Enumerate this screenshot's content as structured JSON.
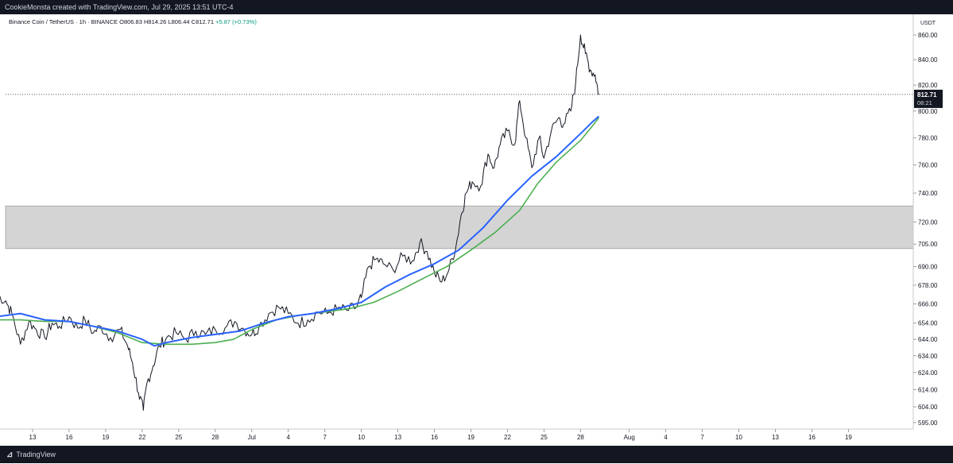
{
  "header": {
    "caption": "CookieMonsta created with TradingView.com, Jul 29, 2025 13:51 UTC-4"
  },
  "legend": {
    "symbol": "Binance Coin / TetherUS · 1h · BINANCE",
    "open": "O806.83",
    "high": "H814.26",
    "low": "L806.44",
    "close": "C812.71",
    "change": "+5.87 (+0.73%)"
  },
  "price_label": {
    "price": "812.71",
    "countdown": "08:21"
  },
  "footer": {
    "brand": "TradingView"
  },
  "colors": {
    "price": "#131722",
    "ma_fast": "#2962ff",
    "ma_slow": "#4caf50",
    "zone": "#d4d4d4",
    "panel": "#131722"
  },
  "chart_data": {
    "type": "line",
    "title": "",
    "ylabel": "USDT",
    "y_scale": "log",
    "ylim": [
      590,
      870
    ],
    "y_ticks": [
      595,
      604,
      614,
      624,
      634,
      644,
      654,
      666,
      678,
      690,
      705,
      720,
      740,
      760,
      780,
      800,
      820,
      840,
      860
    ],
    "x_ticks": [
      {
        "label": "13",
        "day": 13
      },
      {
        "label": "16",
        "day": 16
      },
      {
        "label": "19",
        "day": 19
      },
      {
        "label": "22",
        "day": 22
      },
      {
        "label": "25",
        "day": 25
      },
      {
        "label": "28",
        "day": 28
      },
      {
        "label": "Jul",
        "day": 31
      },
      {
        "label": "4",
        "day": 34
      },
      {
        "label": "7",
        "day": 37
      },
      {
        "label": "10",
        "day": 40
      },
      {
        "label": "13",
        "day": 43
      },
      {
        "label": "16",
        "day": 46
      },
      {
        "label": "19",
        "day": 49
      },
      {
        "label": "22",
        "day": 52
      },
      {
        "label": "25",
        "day": 55
      },
      {
        "label": "28",
        "day": 58
      },
      {
        "label": "Aug",
        "day": 62
      },
      {
        "label": "4",
        "day": 65
      },
      {
        "label": "7",
        "day": 68
      },
      {
        "label": "10",
        "day": 71
      },
      {
        "label": "13",
        "day": 74
      },
      {
        "label": "16",
        "day": 77
      },
      {
        "label": "19",
        "day": 80
      }
    ],
    "zone": [
      702,
      731
    ],
    "last_price": 812.71,
    "series": [
      {
        "kind": "price",
        "points": [
          [
            10,
            672
          ],
          [
            10.8,
            668
          ],
          [
            11.3,
            660
          ],
          [
            12,
            641
          ],
          [
            12.7,
            655
          ],
          [
            13.3,
            650
          ],
          [
            14,
            645
          ],
          [
            14.6,
            654
          ],
          [
            15.2,
            652
          ],
          [
            16,
            658
          ],
          [
            16.7,
            651
          ],
          [
            17.3,
            656
          ],
          [
            18,
            648
          ],
          [
            18.6,
            652
          ],
          [
            19.4,
            645
          ],
          [
            20.2,
            650
          ],
          [
            20.8,
            640
          ],
          [
            21.2,
            630
          ],
          [
            21.7,
            612
          ],
          [
            22.1,
            602
          ],
          [
            22.4,
            618
          ],
          [
            22.9,
            628
          ],
          [
            23.4,
            640
          ],
          [
            24,
            645
          ],
          [
            24.8,
            648
          ],
          [
            25.6,
            644
          ],
          [
            26.4,
            649
          ],
          [
            27.2,
            647
          ],
          [
            28,
            650
          ],
          [
            28.8,
            651
          ],
          [
            29.6,
            655
          ],
          [
            30.4,
            650
          ],
          [
            31,
            647
          ],
          [
            31.6,
            652
          ],
          [
            32.4,
            660
          ],
          [
            33.2,
            664
          ],
          [
            34,
            660
          ],
          [
            34.8,
            654
          ],
          [
            35.6,
            656
          ],
          [
            36.4,
            661
          ],
          [
            37.2,
            660
          ],
          [
            38,
            663
          ],
          [
            38.8,
            662
          ],
          [
            39.6,
            664
          ],
          [
            40,
            670
          ],
          [
            40.6,
            690
          ],
          [
            41.2,
            695
          ],
          [
            41.8,
            692
          ],
          [
            42.6,
            688
          ],
          [
            43.4,
            697
          ],
          [
            44.2,
            694
          ],
          [
            44.8,
            706
          ],
          [
            45.4,
            700
          ],
          [
            46,
            686
          ],
          [
            46.6,
            680
          ],
          [
            47.2,
            688
          ],
          [
            47.8,
            705
          ],
          [
            48.2,
            725
          ],
          [
            48.6,
            740
          ],
          [
            49.1,
            748
          ],
          [
            49.8,
            745
          ],
          [
            50.4,
            768
          ],
          [
            50.9,
            758
          ],
          [
            51.4,
            775
          ],
          [
            52,
            785
          ],
          [
            52.6,
            775
          ],
          [
            53,
            808
          ],
          [
            53.5,
            780
          ],
          [
            54,
            758
          ],
          [
            54.6,
            780
          ],
          [
            55,
            765
          ],
          [
            55.6,
            785
          ],
          [
            56.2,
            795
          ],
          [
            56.6,
            790
          ],
          [
            57.2,
            800
          ],
          [
            57.6,
            822
          ],
          [
            58,
            860
          ],
          [
            58.4,
            845
          ],
          [
            58.8,
            832
          ],
          [
            59.2,
            828
          ],
          [
            59.5,
            812.71
          ]
        ]
      },
      {
        "kind": "ma_fast",
        "points": [
          [
            10,
            658
          ],
          [
            12,
            660
          ],
          [
            14,
            656
          ],
          [
            16,
            655
          ],
          [
            18,
            652
          ],
          [
            20,
            649
          ],
          [
            22,
            644
          ],
          [
            23,
            640
          ],
          [
            24,
            642
          ],
          [
            26,
            645
          ],
          [
            28,
            647
          ],
          [
            30,
            649
          ],
          [
            32,
            654
          ],
          [
            34,
            658
          ],
          [
            36,
            660
          ],
          [
            38,
            663
          ],
          [
            40,
            667
          ],
          [
            42,
            677
          ],
          [
            44,
            685
          ],
          [
            46,
            692
          ],
          [
            48,
            701
          ],
          [
            50,
            716
          ],
          [
            52,
            735
          ],
          [
            54,
            752
          ],
          [
            56,
            766
          ],
          [
            58,
            783
          ],
          [
            59,
            792
          ],
          [
            59.5,
            796
          ]
        ]
      },
      {
        "kind": "ma_slow",
        "points": [
          [
            10,
            656
          ],
          [
            12,
            656
          ],
          [
            14,
            655
          ],
          [
            16,
            655
          ],
          [
            18,
            652
          ],
          [
            20,
            648
          ],
          [
            22,
            642
          ],
          [
            24,
            641
          ],
          [
            26,
            641
          ],
          [
            28,
            642
          ],
          [
            29.5,
            644
          ],
          [
            31,
            650
          ],
          [
            33,
            656
          ],
          [
            35,
            659
          ],
          [
            37,
            661
          ],
          [
            39,
            663
          ],
          [
            41,
            667
          ],
          [
            43,
            674
          ],
          [
            45,
            682
          ],
          [
            47,
            690
          ],
          [
            49,
            701
          ],
          [
            51,
            713
          ],
          [
            53,
            728
          ],
          [
            54.5,
            747
          ],
          [
            56,
            762
          ],
          [
            58,
            778
          ],
          [
            59,
            789
          ],
          [
            59.5,
            795
          ]
        ]
      }
    ]
  }
}
